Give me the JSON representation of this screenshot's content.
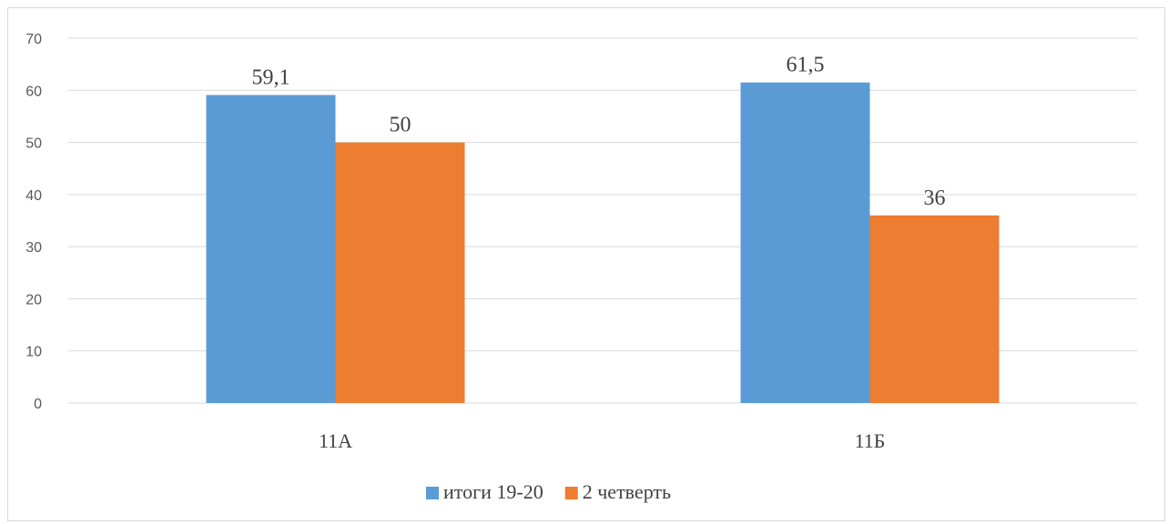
{
  "chart_data": {
    "type": "bar",
    "categories": [
      "11А",
      "11Б"
    ],
    "series": [
      {
        "name": "итоги 19-20",
        "values": [
          59.1,
          61.5
        ],
        "labels": [
          "59,1",
          "61,5"
        ],
        "color": "#5b9bd5"
      },
      {
        "name": "2 четверть",
        "values": [
          50,
          36
        ],
        "labels": [
          "50",
          "36"
        ],
        "color": "#ed7d31"
      }
    ],
    "ylim": [
      0,
      70
    ],
    "yticks": [
      "0",
      "10",
      "20",
      "30",
      "40",
      "50",
      "60",
      "70"
    ],
    "grid": true,
    "gridColor": "#d9d9d9",
    "legend": "bottom"
  }
}
